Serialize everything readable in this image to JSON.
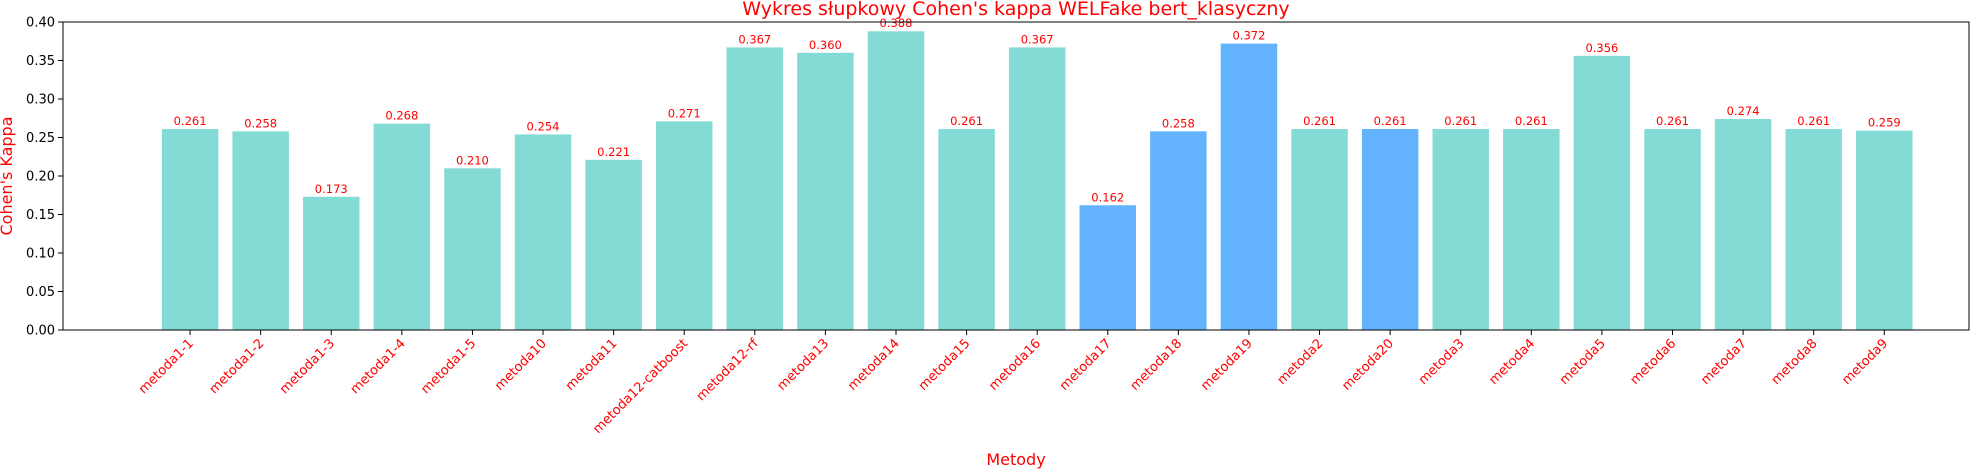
{
  "chart_data": {
    "type": "bar",
    "title": "Wykres słupkowy Cohen's kappa WELFake bert_klasyczny",
    "xlabel": "Metody",
    "ylabel": "Cohen's Kappa",
    "ylim": [
      0,
      0.4
    ],
    "yticks": [
      0.0,
      0.05,
      0.1,
      0.15,
      0.2,
      0.25,
      0.3,
      0.35,
      0.4
    ],
    "ytick_labels": [
      "0.00",
      "0.05",
      "0.10",
      "0.15",
      "0.20",
      "0.25",
      "0.30",
      "0.35",
      "0.40"
    ],
    "grid": false,
    "categories": [
      "metoda1-1",
      "metoda1-2",
      "metoda1-3",
      "metoda1-4",
      "metoda1-5",
      "metoda10",
      "metoda11",
      "metoda12-catboost",
      "metoda12-rf",
      "metoda13",
      "metoda14",
      "metoda15",
      "metoda16",
      "metoda17",
      "metoda18",
      "metoda19",
      "metoda2",
      "metoda20",
      "metoda3",
      "metoda4",
      "metoda5",
      "metoda6",
      "metoda7",
      "metoda8",
      "metoda9"
    ],
    "values": [
      0.261,
      0.258,
      0.173,
      0.268,
      0.21,
      0.254,
      0.221,
      0.271,
      0.367,
      0.36,
      0.388,
      0.261,
      0.367,
      0.162,
      0.258,
      0.372,
      0.261,
      0.261,
      0.261,
      0.261,
      0.356,
      0.261,
      0.274,
      0.261,
      0.259
    ],
    "value_labels": [
      "0.261",
      "0.258",
      "0.173",
      "0.268",
      "0.210",
      "0.254",
      "0.221",
      "0.271",
      "0.367",
      "0.360",
      "0.388",
      "0.261",
      "0.367",
      "0.162",
      "0.258",
      "0.372",
      "0.261",
      "0.261",
      "0.261",
      "0.261",
      "0.356",
      "0.261",
      "0.274",
      "0.261",
      "0.259"
    ],
    "highlighted": [
      "metoda17",
      "metoda18",
      "metoda19",
      "metoda20"
    ],
    "colors": {
      "bar": "#84dbd5",
      "highlight_bar": "#63b3ff",
      "text": "#ff0000",
      "axis": "#000000"
    }
  }
}
